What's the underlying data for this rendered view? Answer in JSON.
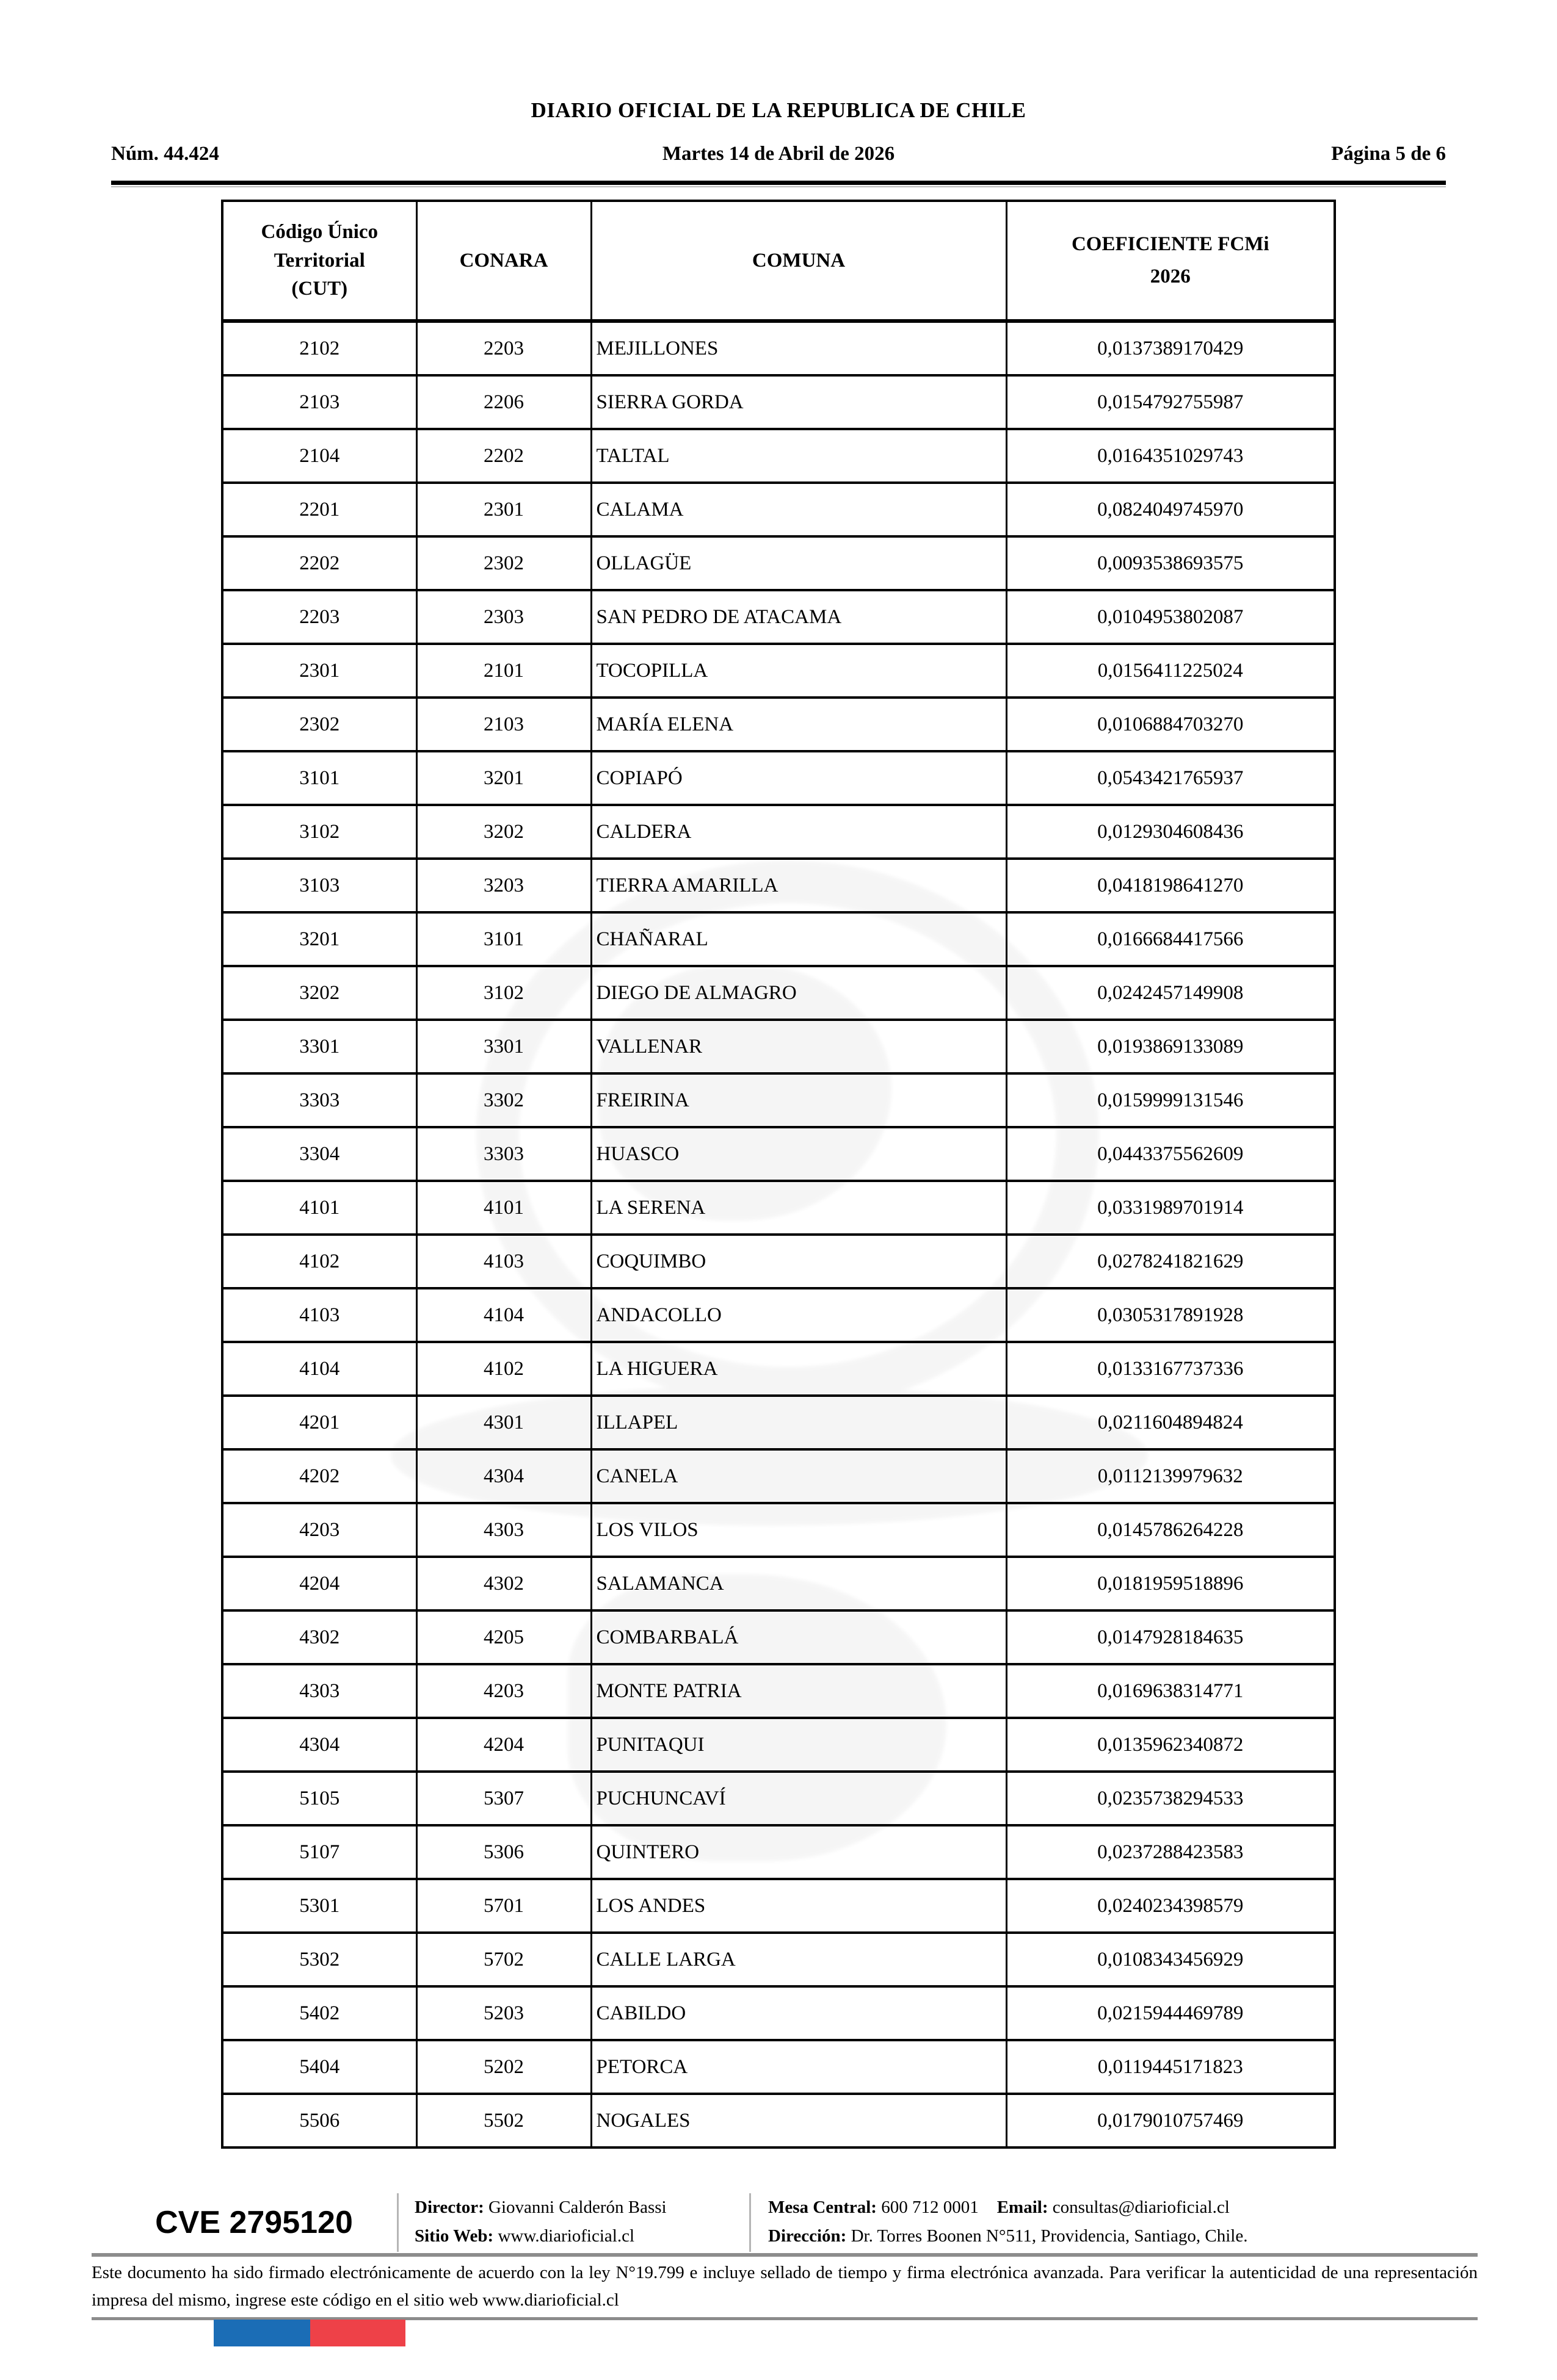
{
  "header": {
    "title": "DIARIO OFICIAL DE LA REPUBLICA DE CHILE",
    "issue_number": "Núm. 44.424",
    "date": "Martes 14 de Abril de 2026",
    "page_indicator": "Página 5 de 6"
  },
  "table": {
    "columns": {
      "cut": "Código Único Territorial (CUT)",
      "conara": "CONARA",
      "comuna": "COMUNA",
      "coeficiente": "COEFICIENTE FCMi 2026"
    },
    "rows": [
      {
        "cut": "2102",
        "conara": "2203",
        "comuna": "MEJILLONES",
        "coeficiente": "0,0137389170429"
      },
      {
        "cut": "2103",
        "conara": "2206",
        "comuna": "SIERRA GORDA",
        "coeficiente": "0,0154792755987"
      },
      {
        "cut": "2104",
        "conara": "2202",
        "comuna": "TALTAL",
        "coeficiente": "0,0164351029743"
      },
      {
        "cut": "2201",
        "conara": "2301",
        "comuna": "CALAMA",
        "coeficiente": "0,0824049745970"
      },
      {
        "cut": "2202",
        "conara": "2302",
        "comuna": "OLLAGÜE",
        "coeficiente": "0,0093538693575"
      },
      {
        "cut": "2203",
        "conara": "2303",
        "comuna": "SAN PEDRO DE ATACAMA",
        "coeficiente": "0,0104953802087"
      },
      {
        "cut": "2301",
        "conara": "2101",
        "comuna": "TOCOPILLA",
        "coeficiente": "0,0156411225024"
      },
      {
        "cut": "2302",
        "conara": "2103",
        "comuna": "MARÍA ELENA",
        "coeficiente": "0,0106884703270"
      },
      {
        "cut": "3101",
        "conara": "3201",
        "comuna": "COPIAPÓ",
        "coeficiente": "0,0543421765937"
      },
      {
        "cut": "3102",
        "conara": "3202",
        "comuna": "CALDERA",
        "coeficiente": "0,0129304608436"
      },
      {
        "cut": "3103",
        "conara": "3203",
        "comuna": "TIERRA AMARILLA",
        "coeficiente": "0,0418198641270"
      },
      {
        "cut": "3201",
        "conara": "3101",
        "comuna": "CHAÑARAL",
        "coeficiente": "0,0166684417566"
      },
      {
        "cut": "3202",
        "conara": "3102",
        "comuna": "DIEGO DE ALMAGRO",
        "coeficiente": "0,0242457149908"
      },
      {
        "cut": "3301",
        "conara": "3301",
        "comuna": "VALLENAR",
        "coeficiente": "0,0193869133089"
      },
      {
        "cut": "3303",
        "conara": "3302",
        "comuna": "FREIRINA",
        "coeficiente": "0,0159999131546"
      },
      {
        "cut": "3304",
        "conara": "3303",
        "comuna": "HUASCO",
        "coeficiente": "0,0443375562609"
      },
      {
        "cut": "4101",
        "conara": "4101",
        "comuna": "LA SERENA",
        "coeficiente": "0,0331989701914"
      },
      {
        "cut": "4102",
        "conara": "4103",
        "comuna": "COQUIMBO",
        "coeficiente": "0,0278241821629"
      },
      {
        "cut": "4103",
        "conara": "4104",
        "comuna": "ANDACOLLO",
        "coeficiente": "0,0305317891928"
      },
      {
        "cut": "4104",
        "conara": "4102",
        "comuna": "LA HIGUERA",
        "coeficiente": "0,0133167737336"
      },
      {
        "cut": "4201",
        "conara": "4301",
        "comuna": "ILLAPEL",
        "coeficiente": "0,0211604894824"
      },
      {
        "cut": "4202",
        "conara": "4304",
        "comuna": "CANELA",
        "coeficiente": "0,0112139979632"
      },
      {
        "cut": "4203",
        "conara": "4303",
        "comuna": "LOS VILOS",
        "coeficiente": "0,0145786264228"
      },
      {
        "cut": "4204",
        "conara": "4302",
        "comuna": "SALAMANCA",
        "coeficiente": "0,0181959518896"
      },
      {
        "cut": "4302",
        "conara": "4205",
        "comuna": "COMBARBALÁ",
        "coeficiente": "0,0147928184635"
      },
      {
        "cut": "4303",
        "conara": "4203",
        "comuna": "MONTE PATRIA",
        "coeficiente": "0,0169638314771"
      },
      {
        "cut": "4304",
        "conara": "4204",
        "comuna": "PUNITAQUI",
        "coeficiente": "0,0135962340872"
      },
      {
        "cut": "5105",
        "conara": "5307",
        "comuna": "PUCHUNCAVÍ",
        "coeficiente": "0,0235738294533"
      },
      {
        "cut": "5107",
        "conara": "5306",
        "comuna": "QUINTERO",
        "coeficiente": "0,0237288423583"
      },
      {
        "cut": "5301",
        "conara": "5701",
        "comuna": "LOS ANDES",
        "coeficiente": "0,0240234398579"
      },
      {
        "cut": "5302",
        "conara": "5702",
        "comuna": "CALLE LARGA",
        "coeficiente": "0,0108343456929"
      },
      {
        "cut": "5402",
        "conara": "5203",
        "comuna": "CABILDO",
        "coeficiente": "0,0215944469789"
      },
      {
        "cut": "5404",
        "conara": "5202",
        "comuna": "PETORCA",
        "coeficiente": "0,0119445171823"
      },
      {
        "cut": "5506",
        "conara": "5502",
        "comuna": "NOGALES",
        "coeficiente": "0,0179010757469"
      }
    ]
  },
  "footer": {
    "cve": "CVE 2795120",
    "director_label": "Director:",
    "director": "Giovanni Calderón Bassi",
    "sitio_label": "Sitio Web:",
    "sitio": "www.diarioficial.cl",
    "mesa_label": "Mesa Central:",
    "mesa": "600 712 0001",
    "email_label": "Email:",
    "email": "consultas@diarioficial.cl",
    "direccion_label": "Dirección:",
    "direccion": "Dr. Torres Boonen N°511, Providencia, Santiago, Chile.",
    "legal": "Este documento ha sido firmado electrónicamente de acuerdo con la ley N°19.799 e incluye sellado de tiempo y firma electrónica avanzada. Para verificar la autenticidad de una representación impresa del mismo, ingrese este código en el sitio web www.diarioficial.cl"
  },
  "colors": {
    "flag_blue": "#1b6db6",
    "flag_red": "#ee4148",
    "rule_gray": "#8c8c8c",
    "divider_gray": "#b5b5b5"
  }
}
